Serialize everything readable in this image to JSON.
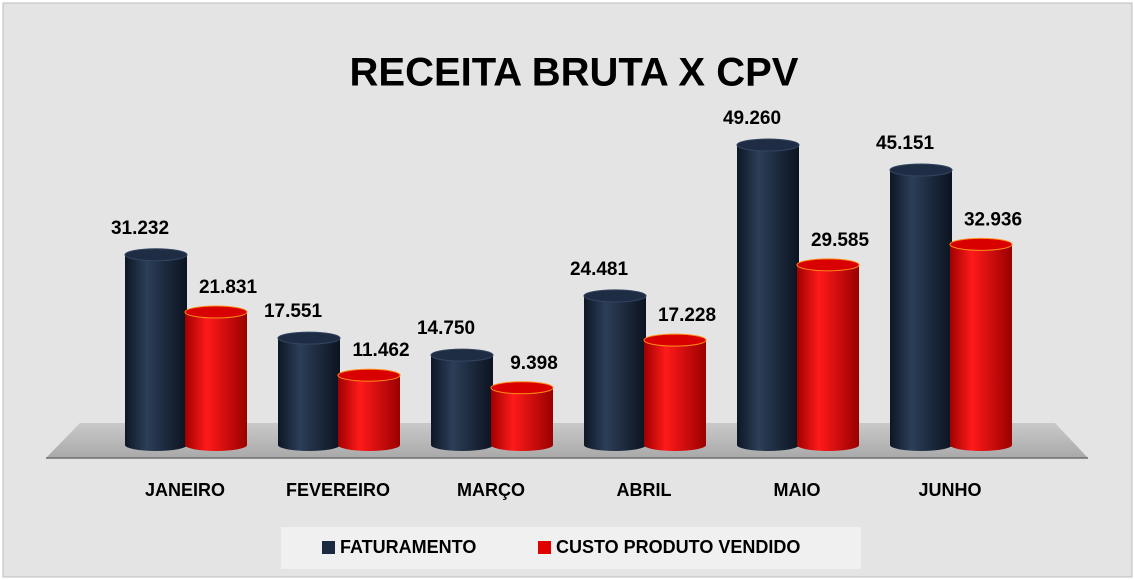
{
  "chart_data": {
    "type": "bar",
    "title": "RECEITA BRUTA X CPV",
    "categories": [
      "JANEIRO",
      "FEVEREIRO",
      "MARÇO",
      "ABRIL",
      "MAIO",
      "JUNHO"
    ],
    "series": [
      {
        "name": "FATURAMENTO",
        "color": "#1b2a40",
        "values": [
          31232,
          17551,
          14750,
          24481,
          49260,
          45151
        ],
        "value_labels": [
          "31.232",
          "17.551",
          "14.750",
          "24.481",
          "49.260",
          "45.151"
        ]
      },
      {
        "name": "CUSTO PRODUTO VENDIDO",
        "color": "#e00000",
        "values": [
          21831,
          11462,
          9398,
          17228,
          29585,
          32936
        ],
        "value_labels": [
          "21.831",
          "11.462",
          "9.398",
          "17.228",
          "29.585",
          "32.936"
        ]
      }
    ],
    "legend": "bottom"
  }
}
